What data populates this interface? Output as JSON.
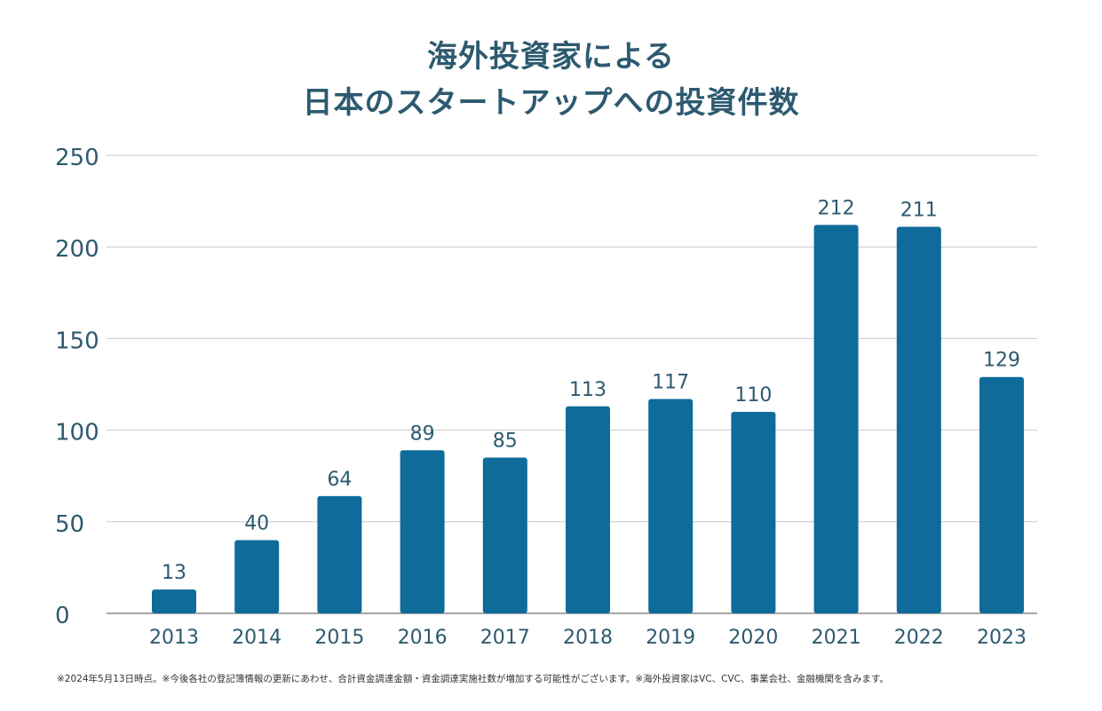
{
  "title": {
    "line1": "海外投資家による",
    "line2": "日本のスタートアップへの投資件数"
  },
  "chart_data": {
    "type": "bar",
    "title": "海外投資家による日本のスタートアップへの投資件数",
    "categories": [
      "2013",
      "2014",
      "2015",
      "2016",
      "2017",
      "2018",
      "2019",
      "2020",
      "2021",
      "2022",
      "2023"
    ],
    "values": [
      13,
      40,
      64,
      89,
      85,
      113,
      117,
      110,
      212,
      211,
      129
    ],
    "xlabel": "",
    "ylabel": "",
    "ylim": [
      0,
      250
    ],
    "yticks": [
      0,
      50,
      100,
      150,
      200,
      250
    ],
    "grid": true,
    "bar_color": "#0f6b9a",
    "text_color": "#2d5a70",
    "data_labels": true
  },
  "footnote": "※2024年5月13日時点。※今後各社の登記簿情報の更新にあわせ、合計資金調達金額・資金調達実施社数が増加する可能性がございます。※海外投資家はVC、CVC、事業会社、金融機関を含みます。"
}
